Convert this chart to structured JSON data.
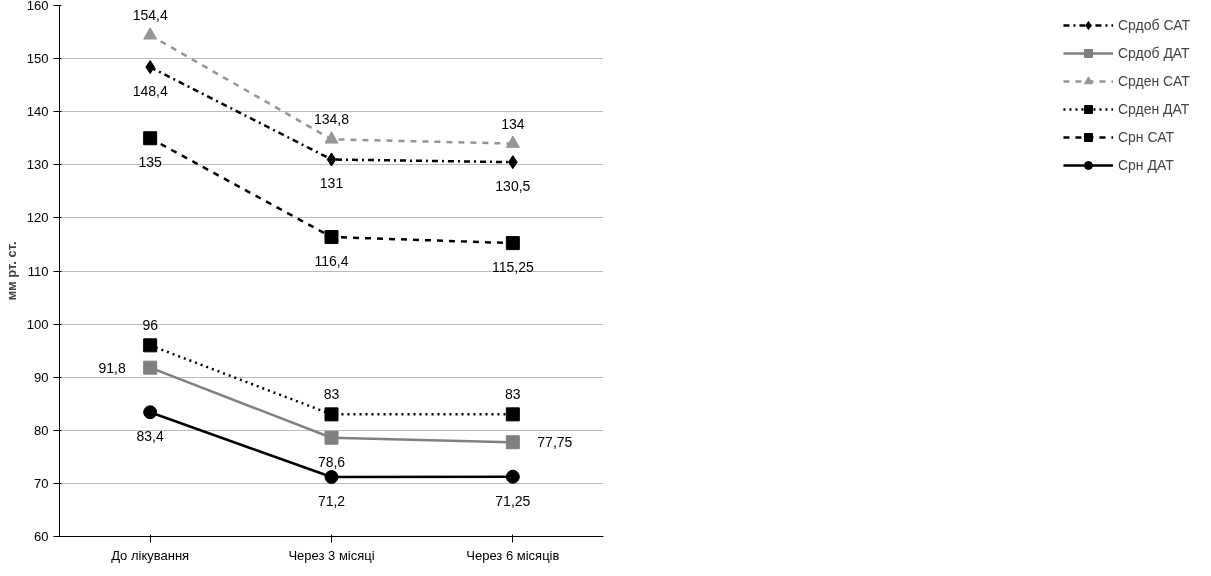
{
  "chart_data": {
    "type": "line",
    "ylabel": "мм рт. ст.",
    "categories": [
      "До лікування",
      "Через 3 місяці",
      "Через 6 місяців"
    ],
    "ylim": [
      60,
      160
    ],
    "yticks": [
      60,
      70,
      80,
      90,
      100,
      110,
      120,
      130,
      140,
      150,
      160
    ],
    "grid": "y",
    "legend": "right",
    "series": [
      {
        "name": "Срдоб САТ",
        "color": "#000000",
        "marker": "diamond",
        "line_style": "dashdot",
        "values": [
          148.4,
          131,
          130.5
        ],
        "value_labels": [
          "148,4",
          "131",
          "130,5"
        ]
      },
      {
        "name": "Срдоб ДАТ",
        "color": "#808080",
        "marker": "square",
        "line_style": "solid",
        "values": [
          91.8,
          78.6,
          77.75
        ],
        "value_labels": [
          "91,8",
          "78,6",
          "77,75"
        ]
      },
      {
        "name": "Срден САТ",
        "color": "#969696",
        "marker": "triangle",
        "line_style": "dashed",
        "values": [
          154.4,
          134.8,
          134
        ],
        "value_labels": [
          "154,4",
          "134,8",
          "134"
        ]
      },
      {
        "name": "Срден ДАТ",
        "color": "#000000",
        "marker": "square",
        "line_style": "dotted",
        "values": [
          96,
          83,
          83
        ],
        "value_labels": [
          "96",
          "83",
          "83"
        ]
      },
      {
        "name": "Срн САТ",
        "color": "#000000",
        "marker": "square",
        "line_style": "dashed",
        "values": [
          135,
          116.4,
          115.25
        ],
        "value_labels": [
          "135",
          "116,4",
          "115,25"
        ]
      },
      {
        "name": "Срн ДАТ",
        "color": "#000000",
        "marker": "circle",
        "line_style": "solid",
        "values": [
          83.4,
          71.2,
          71.25
        ],
        "value_labels": [
          "83,4",
          "71,2",
          "71,25"
        ]
      }
    ]
  }
}
